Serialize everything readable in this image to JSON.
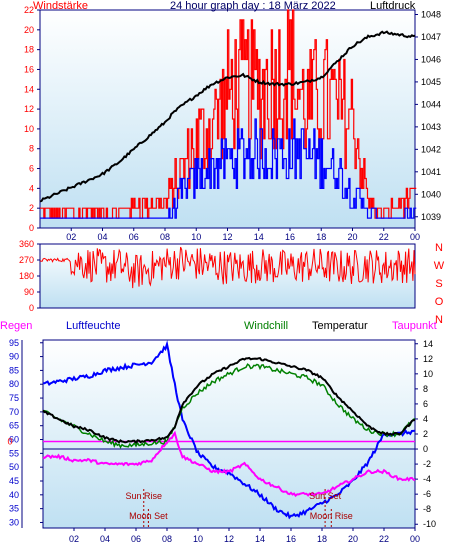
{
  "header": {
    "left_label": "Windstärke",
    "title": "24 hour graph day : 18 März 2022",
    "right_label": "Luftdruck"
  },
  "legend": {
    "regen": "Regen",
    "luftfeuchte": "Luftfeuchte",
    "windchill": "Windchill",
    "temperatur": "Temperatur",
    "taupunkt": "Taupunkt"
  },
  "colors": {
    "wind": "#ff0000",
    "gust": "#ff0000",
    "avg_wind": "#0000ff",
    "pressure": "#000000",
    "direction": "#ff0000",
    "humidity": "#0000ff",
    "windchill": "#008000",
    "temperature": "#000000",
    "dewpoint": "#ff00ff",
    "rain": "#ff0000",
    "sky_top": "#ffffff",
    "sky_bottom": "#bfe0f2"
  },
  "chart_data": [
    {
      "type": "line",
      "name": "wind-and-pressure",
      "title": "24 hour graph day : 18 März 2022",
      "xlabel": "",
      "x_ticks": [
        "02",
        "04",
        "06",
        "08",
        "10",
        "12",
        "14",
        "16",
        "18",
        "20",
        "22",
        "00"
      ],
      "left_axis": {
        "label": "Windstärke",
        "ticks": [
          0,
          2,
          4,
          6,
          8,
          10,
          12,
          14,
          16,
          18,
          20,
          22
        ],
        "ylim": [
          0,
          22
        ]
      },
      "right_axis": {
        "label": "Luftdruck",
        "ticks": [
          1039,
          1040,
          1041,
          1042,
          1043,
          1044,
          1045,
          1046,
          1047,
          1048
        ],
        "ylim": [
          1038.5,
          1048.2
        ]
      },
      "x": [
        0,
        1,
        2,
        3,
        4,
        5,
        6,
        7,
        8,
        8.5,
        9,
        10,
        11,
        12,
        13,
        14,
        15,
        16,
        17,
        18,
        19,
        20,
        21,
        22,
        23,
        24
      ],
      "series": [
        {
          "name": "Luftdruck",
          "axis": "right",
          "values": [
            1039.7,
            1040.0,
            1040.3,
            1040.6,
            1040.9,
            1041.4,
            1042.0,
            1042.6,
            1043.2,
            1043.6,
            1043.9,
            1044.4,
            1044.9,
            1045.2,
            1045.3,
            1045.0,
            1044.9,
            1044.9,
            1045.0,
            1045.2,
            1045.9,
            1046.6,
            1047.0,
            1047.2,
            1047.1,
            1047.0
          ]
        },
        {
          "name": "gust",
          "axis": "left",
          "values": [
            2,
            2,
            2,
            2,
            2,
            2,
            3,
            3,
            3,
            5,
            7,
            11,
            13,
            17,
            18,
            17,
            19,
            20,
            15,
            17,
            15,
            14,
            3,
            2,
            3,
            4
          ]
        },
        {
          "name": "wind",
          "axis": "left",
          "values": [
            1,
            1,
            1,
            1,
            1,
            1,
            1,
            1,
            1,
            2,
            4,
            6,
            7,
            8,
            9,
            9,
            9,
            9,
            9,
            8,
            7,
            4,
            2,
            1,
            1,
            2
          ]
        }
      ]
    },
    {
      "type": "scatter",
      "name": "wind-direction",
      "x_ticks": [],
      "left_axis": {
        "ticks": [
          0,
          90,
          180,
          270,
          360
        ],
        "ylim": [
          0,
          360
        ]
      },
      "right_axis_labels": [
        "N",
        "W",
        "S",
        "O",
        "N"
      ],
      "x": [
        0,
        0.5,
        1,
        2,
        3,
        4,
        5,
        6,
        7,
        8,
        9,
        10,
        11,
        12,
        13,
        14,
        15,
        16,
        17,
        18,
        19,
        20,
        21,
        22,
        23,
        24
      ],
      "series": [
        {
          "name": "Windrichtung",
          "values": [
            270,
            270,
            270,
            270,
            250,
            230,
            240,
            200,
            220,
            250,
            260,
            250,
            240,
            230,
            230,
            240,
            230,
            230,
            240,
            240,
            230,
            230,
            240,
            230,
            240,
            240
          ]
        }
      ]
    },
    {
      "type": "line",
      "name": "temperature-humidity",
      "x_ticks": [
        "02",
        "04",
        "06",
        "08",
        "10",
        "12",
        "14",
        "16",
        "18",
        "20",
        "22",
        "00"
      ],
      "left_axis": {
        "label": "Luftfeuchte",
        "ticks": [
          30,
          35,
          40,
          45,
          50,
          55,
          60,
          65,
          70,
          75,
          80,
          85,
          90,
          95
        ],
        "ylim": [
          28,
          96
        ]
      },
      "right_axis": {
        "label": "Temperatur",
        "ticks": [
          -10,
          -8,
          -6,
          -4,
          -2,
          0,
          2,
          4,
          6,
          8,
          10,
          12,
          14
        ],
        "ylim": [
          -10.5,
          14.5
        ]
      },
      "marker_label": "0",
      "x": [
        0,
        1,
        2,
        3,
        4,
        5,
        6,
        7,
        8,
        8.5,
        9,
        10,
        11,
        12,
        13,
        14,
        15,
        16,
        17,
        18,
        19,
        20,
        21,
        22,
        23,
        24
      ],
      "series": [
        {
          "name": "Luftfeuchte",
          "axis": "left",
          "values": [
            80,
            81,
            82,
            83,
            85,
            86,
            87,
            88,
            94,
            80,
            67,
            55,
            50,
            48,
            44,
            40,
            35,
            32,
            34,
            37,
            40,
            45,
            52,
            62,
            62,
            63
          ]
        },
        {
          "name": "Temperatur",
          "axis": "right",
          "values": [
            5,
            4,
            3,
            2.5,
            1.5,
            1,
            1,
            1.2,
            1.5,
            3,
            6,
            8.5,
            10,
            11,
            12,
            12,
            11.5,
            11,
            10.5,
            9.5,
            7,
            5,
            3,
            2,
            2,
            4
          ]
        },
        {
          "name": "Windchill",
          "axis": "right",
          "values": [
            5,
            4,
            3,
            2,
            1,
            0.5,
            0.5,
            0.8,
            1,
            3,
            5.5,
            7.5,
            9,
            10,
            11,
            11,
            10.5,
            10,
            9.5,
            8.5,
            6,
            4,
            2.5,
            2,
            2,
            4
          ]
        },
        {
          "name": "Taupunkt",
          "axis": "right",
          "values": [
            -1,
            -1,
            -1.5,
            -1.5,
            -2,
            -2,
            -2,
            -1.5,
            1,
            2,
            -1,
            -2,
            -3,
            -3,
            -2,
            -4,
            -5,
            -6,
            -6,
            -6,
            -5,
            -4,
            -3,
            -3,
            -4,
            -4
          ]
        }
      ],
      "annotations": [
        {
          "text": "Sun Rise",
          "x": 6.5
        },
        {
          "text": "Moon Set",
          "x": 6.8
        },
        {
          "text": "Sun Set",
          "x": 18.2
        },
        {
          "text": "Moon Rise",
          "x": 18.6
        }
      ]
    }
  ]
}
